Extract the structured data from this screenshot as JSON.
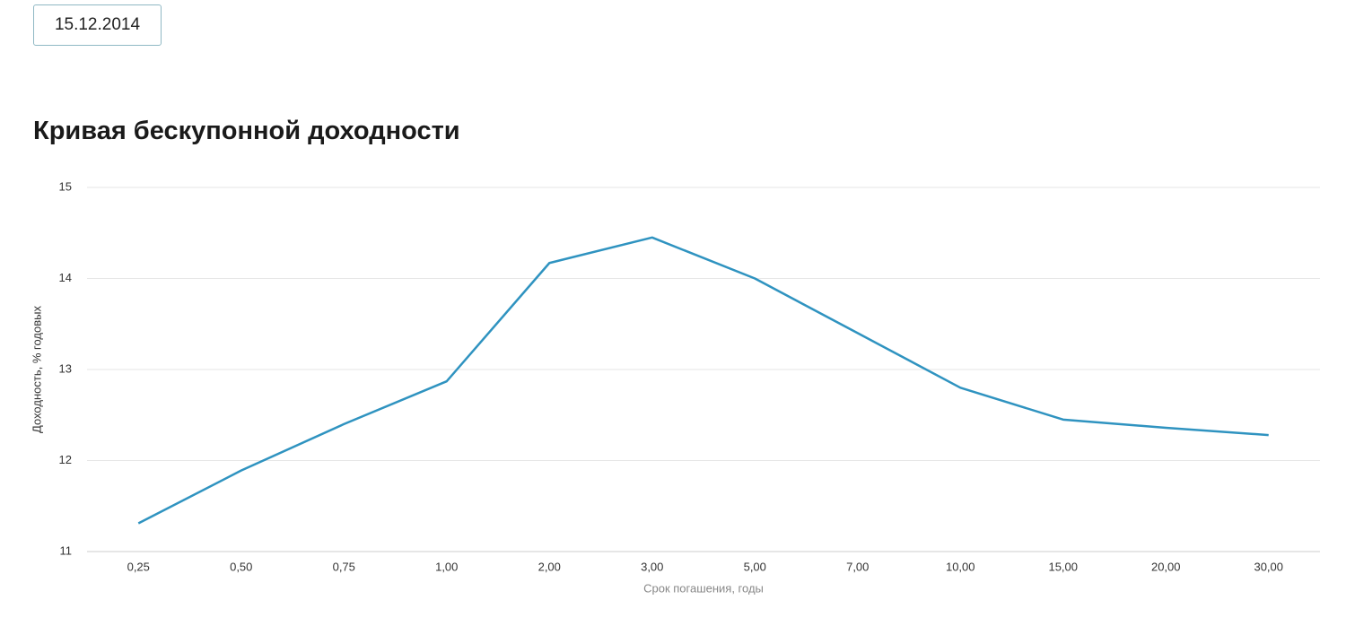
{
  "date": "15.12.2014",
  "chart_data": {
    "type": "line",
    "title": "Кривая бескупонной доходности",
    "x_label": "Срок погашения, годы",
    "y_label": "Доходность, % годовых",
    "categories": [
      "0,25",
      "0,50",
      "0,75",
      "1,00",
      "2,00",
      "3,00",
      "5,00",
      "7,00",
      "10,00",
      "15,00",
      "20,00",
      "30,00"
    ],
    "values": [
      11.31,
      11.89,
      12.4,
      12.87,
      14.17,
      14.45,
      14.0,
      13.4,
      12.8,
      12.45,
      12.36,
      12.28
    ],
    "color": "#2f93c0",
    "ylim": [
      11,
      15
    ],
    "yticks": [
      11,
      12,
      13,
      14,
      15
    ],
    "grid": true
  }
}
